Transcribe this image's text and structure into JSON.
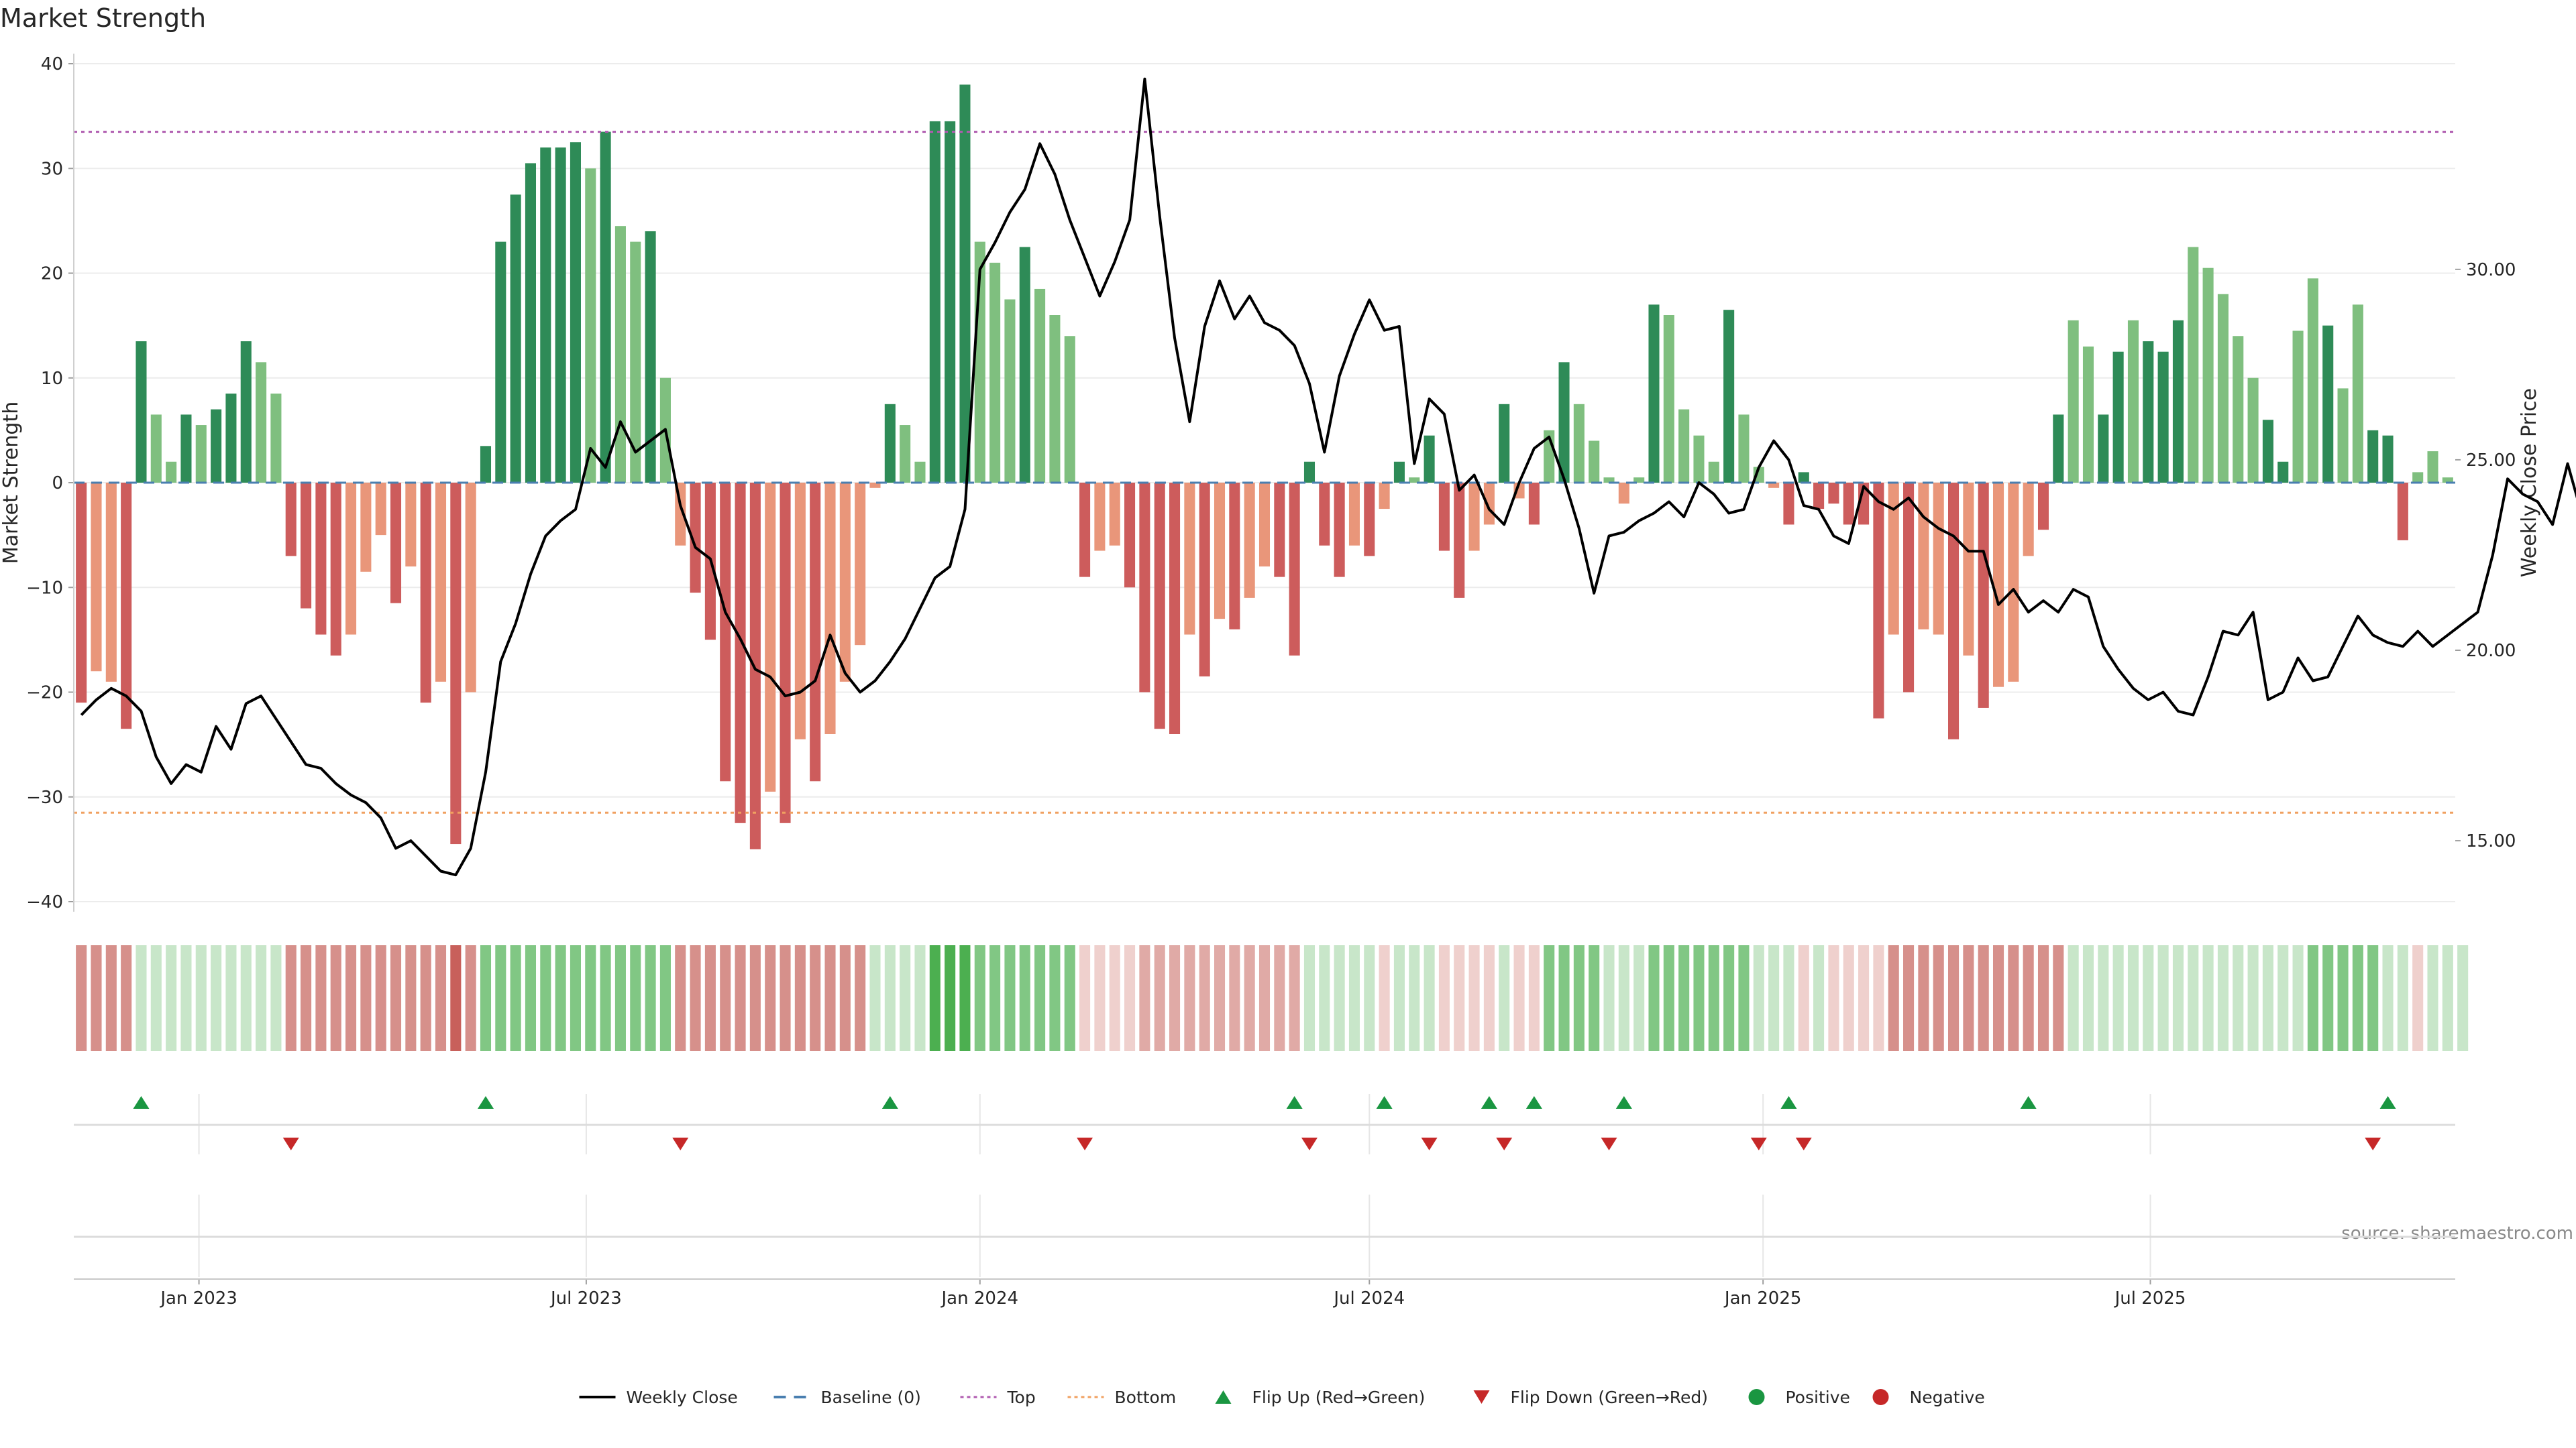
{
  "chart_data": {
    "type": "bar",
    "title": "Market Strength",
    "ylabel": "Market Strength",
    "y2label": "Weekly Close Price",
    "source": "source: sharemaestro.com",
    "ylim": [
      -40,
      40
    ],
    "y2lim": [
      13.4,
      35.4
    ],
    "yticks": [
      "40",
      "30",
      "20",
      "10",
      "0",
      "−10",
      "−20",
      "−30",
      "−40"
    ],
    "y2ticks": [
      "30.00",
      "25.00",
      "20.00",
      "15.00"
    ],
    "xticks": [
      "Jan 2023",
      "Jul 2023",
      "Jan 2024",
      "Jul 2024",
      "Jan 2025",
      "Jul 2025"
    ],
    "top_line": 33.5,
    "bottom_line": -31.5,
    "start_date": "2022-11-07",
    "colors": {
      "strong_up": "#2e8b57",
      "weak_up": "#7fbf7f",
      "strong_down": "#cd5c5c",
      "weak_down": "#e9967a",
      "close": "#000000",
      "top": "#b05bb0",
      "bottom": "#f0a060",
      "baseline": "#4a7fb0",
      "flip_up": "#1a9641",
      "flip_down": "#c62828"
    },
    "strength": [
      -21,
      -18,
      -19,
      -23.5,
      13.5,
      6.5,
      2,
      6.5,
      5.5,
      7,
      8.5,
      13.5,
      11.5,
      8.5,
      -7,
      -12,
      -14.5,
      -16.5,
      -14.5,
      -8.5,
      -5,
      -11.5,
      -8,
      -21,
      -19,
      -34.5,
      -20,
      3.5,
      23,
      27.5,
      30.5,
      32,
      32,
      32.5,
      30,
      33.5,
      24.5,
      23,
      24,
      10,
      -6,
      -10.5,
      -15,
      -28.5,
      -32.5,
      -35,
      -29.5,
      -32.5,
      -24.5,
      -28.5,
      -24,
      -19,
      -15.5,
      -0.5,
      7.5,
      5.5,
      2,
      34.5,
      34.5,
      38,
      23,
      21,
      17.5,
      22.5,
      18.5,
      16,
      14,
      -9,
      -6.5,
      -6,
      -10,
      -20,
      -23.5,
      -24,
      -14.5,
      -18.5,
      -13,
      -14,
      -11,
      -8,
      -9,
      -16.5,
      2,
      -6,
      -9,
      -6,
      -7,
      -2.5,
      2,
      0.5,
      4.5,
      -6.5,
      -11,
      -6.5,
      -4,
      7.5,
      -1.5,
      -4,
      5,
      11.5,
      7.5,
      4,
      0.5,
      -2,
      0.5,
      17,
      16,
      7,
      4.5,
      2,
      16.5,
      6.5,
      1.5,
      -0.5,
      -4,
      1,
      -2.5,
      -2,
      -4,
      -4,
      -22.5,
      -14.5,
      -20,
      -14,
      -14.5,
      -24.5,
      -16.5,
      -21.5,
      -19.5,
      -19,
      -7,
      -4.5,
      6.5,
      15.5,
      13,
      6.5,
      12.5,
      15.5,
      13.5,
      12.5,
      15.5,
      22.5,
      20.5,
      18,
      14,
      10,
      6,
      2,
      14.5,
      19.5,
      15,
      9,
      17,
      5,
      4.5,
      -5.5,
      1,
      3,
      0.5
    ],
    "strength_class": [
      1,
      0,
      0,
      1,
      1,
      0,
      0,
      1,
      0,
      1,
      1,
      1,
      0,
      0,
      1,
      1,
      1,
      1,
      0,
      0,
      0,
      1,
      0,
      1,
      0,
      1,
      0,
      1,
      1,
      1,
      1,
      1,
      1,
      1,
      0,
      1,
      0,
      0,
      1,
      0,
      0,
      1,
      1,
      1,
      1,
      1,
      0,
      1,
      0,
      1,
      0,
      0,
      0,
      0,
      1,
      0,
      0,
      1,
      1,
      1,
      0,
      0,
      0,
      1,
      0,
      0,
      0,
      1,
      0,
      0,
      1,
      1,
      1,
      1,
      0,
      1,
      0,
      1,
      0,
      0,
      1,
      1,
      1,
      1,
      1,
      0,
      1,
      0,
      1,
      0,
      1,
      1,
      1,
      0,
      0,
      1,
      0,
      1,
      0,
      1,
      0,
      0,
      0,
      0,
      0,
      1,
      0,
      0,
      0,
      0,
      1,
      0,
      0,
      0,
      1,
      1,
      1,
      1,
      1,
      1,
      1,
      0,
      1,
      0,
      0,
      1,
      0,
      1,
      0,
      0,
      0,
      1,
      1,
      0,
      0,
      1,
      1,
      0,
      1,
      1,
      1,
      0,
      0,
      0,
      0,
      0,
      1,
      1,
      0,
      0,
      1,
      0,
      0,
      1,
      1,
      1,
      0
    ],
    "close": [
      18.3,
      18.7,
      19.0,
      18.8,
      18.4,
      17.2,
      16.5,
      17.0,
      16.8,
      18.0,
      17.4,
      18.6,
      18.8,
      18.2,
      17.6,
      17.0,
      16.9,
      16.5,
      16.2,
      16.0,
      15.6,
      14.8,
      15.0,
      14.6,
      14.2,
      14.1,
      14.8,
      16.8,
      19.7,
      20.7,
      22.0,
      23.0,
      23.4,
      23.7,
      25.3,
      24.8,
      26.0,
      25.2,
      25.5,
      25.8,
      23.8,
      22.7,
      22.4,
      21.0,
      20.3,
      19.5,
      19.3,
      18.8,
      18.9,
      19.2,
      20.4,
      19.4,
      18.9,
      19.2,
      19.7,
      20.3,
      21.1,
      21.9,
      22.2,
      23.7,
      30.0,
      30.7,
      31.5,
      32.1,
      33.3,
      32.5,
      31.3,
      30.3,
      29.3,
      30.2,
      31.3,
      35.0,
      31.4,
      28.2,
      26.0,
      28.5,
      29.7,
      28.7,
      29.3,
      28.6,
      28.4,
      28.0,
      27.0,
      25.2,
      27.2,
      28.3,
      29.2,
      28.4,
      28.5,
      24.9,
      26.6,
      26.2,
      24.2,
      24.6,
      23.7,
      23.3,
      24.4,
      25.3,
      25.6,
      24.5,
      23.2,
      21.5,
      23.0,
      23.1,
      23.4,
      23.6,
      23.9,
      23.5,
      24.4,
      24.1,
      23.6,
      23.7,
      24.8,
      25.5,
      25.0,
      23.8,
      23.7,
      23.0,
      22.8,
      24.3,
      23.9,
      23.7,
      24.0,
      23.5,
      23.2,
      23.0,
      22.6,
      22.6,
      21.2,
      21.6,
      21.0,
      21.3,
      21.0,
      21.6,
      21.4,
      20.1,
      19.5,
      19.0,
      18.7,
      18.9,
      18.4,
      18.3,
      19.3,
      20.5,
      20.4,
      21.0,
      18.7,
      18.9,
      19.8,
      19.2,
      19.3,
      20.1,
      20.9,
      20.4,
      20.2,
      20.1,
      20.5,
      20.1,
      20.4,
      20.7,
      21.0,
      22.5,
      24.5,
      24.1,
      23.9,
      23.3,
      24.9,
      23.5,
      24.8,
      22.7,
      23.4,
      24.0,
      24.0
    ],
    "heat": [
      -3,
      -3,
      -3,
      -3,
      1,
      1,
      1,
      1,
      1,
      1,
      1,
      1,
      1,
      1,
      -3,
      -3,
      -3,
      -3,
      -3,
      -3,
      -3,
      -3,
      -3,
      -3,
      -3,
      -4,
      -3,
      2,
      2,
      2,
      2,
      2,
      2,
      2,
      2,
      2,
      2,
      2,
      2,
      2,
      -3,
      -3,
      -3,
      -3,
      -3,
      -3,
      -3,
      -3,
      -3,
      -3,
      -3,
      -3,
      -3,
      1,
      1,
      1,
      1,
      3,
      3,
      3,
      2,
      2,
      2,
      2,
      2,
      2,
      2,
      -1,
      -1,
      -1,
      -1,
      -2,
      -2,
      -2,
      -2,
      -2,
      -2,
      -2,
      -2,
      -2,
      -2,
      -2,
      1,
      1,
      1,
      1,
      1,
      -1,
      1,
      1,
      1,
      -1,
      -1,
      -1,
      -1,
      1,
      -1,
      -1,
      2,
      2,
      2,
      2,
      1,
      1,
      1,
      2,
      2,
      2,
      2,
      2,
      2,
      2,
      1,
      1,
      1,
      -1,
      1,
      -1,
      -1,
      -1,
      -1,
      -3,
      -3,
      -3,
      -3,
      -3,
      -3,
      -3,
      -3,
      -3,
      -3,
      -3,
      -3,
      1,
      1,
      1,
      1,
      1,
      1,
      1,
      1,
      1,
      1,
      1,
      1,
      1,
      1,
      1,
      1,
      2,
      2,
      2,
      2,
      2,
      1,
      1,
      -1,
      1,
      1,
      1
    ],
    "flip_up": [
      4,
      27,
      54,
      81,
      87,
      94,
      97,
      103,
      114,
      130,
      154
    ],
    "flip_down": [
      14,
      40,
      67,
      82,
      90,
      95,
      102,
      112,
      115,
      153
    ],
    "legend": [
      {
        "label": "Weekly Close",
        "kind": "line"
      },
      {
        "label": "Baseline (0)",
        "kind": "baseline"
      },
      {
        "label": "Top",
        "kind": "top"
      },
      {
        "label": "Bottom",
        "kind": "bottom"
      },
      {
        "label": "Flip Up (Red→Green)",
        "kind": "tri-up"
      },
      {
        "label": "Flip Down (Green→Red)",
        "kind": "tri-down"
      },
      {
        "label": "Positive",
        "kind": "dot-pos"
      },
      {
        "label": "Negative",
        "kind": "dot-neg"
      }
    ]
  }
}
